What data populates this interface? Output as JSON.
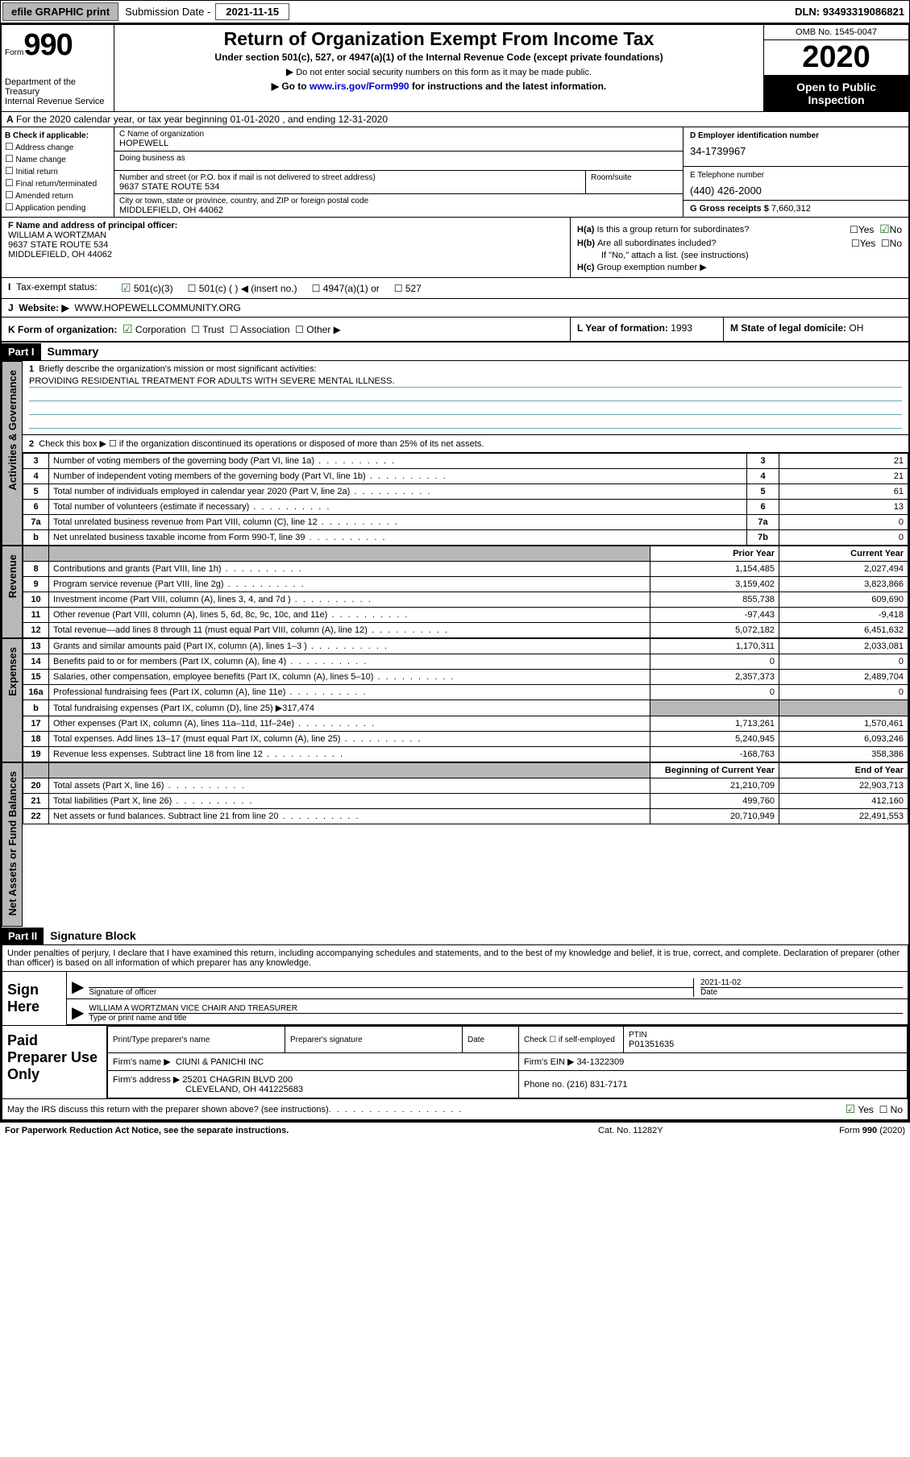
{
  "topbar": {
    "efile": "efile GRAPHIC print",
    "submission_label": "Submission Date - ",
    "submission_date": "2021-11-15",
    "dln_label": "DLN: ",
    "dln": "93493319086821"
  },
  "header": {
    "form_label": "Form",
    "form_number": "990",
    "title": "Return of Organization Exempt From Income Tax",
    "subtitle": "Under section 501(c), 527, or 4947(a)(1) of the Internal Revenue Code (except private foundations)",
    "note1": "Do not enter social security numbers on this form as it may be made public.",
    "note2_pre": "Go to ",
    "note2_link": "www.irs.gov/Form990",
    "note2_post": " for instructions and the latest information.",
    "dept": "Department of the Treasury\nInternal Revenue Service",
    "omb": "OMB No. 1545-0047",
    "year": "2020",
    "open": "Open to Public Inspection"
  },
  "row_a": "For the 2020 calendar year, or tax year beginning 01-01-2020   , and ending 12-31-2020",
  "col_b": {
    "title": "B Check if applicable:",
    "items": [
      "Address change",
      "Name change",
      "Initial return",
      "Final return/terminated",
      "Amended return",
      "Application pending"
    ]
  },
  "col_c": {
    "name_label": "C Name of organization",
    "name": "HOPEWELL",
    "dba_label": "Doing business as",
    "addr_label": "Number and street (or P.O. box if mail is not delivered to street address)",
    "addr": "9637 STATE ROUTE 534",
    "room_label": "Room/suite",
    "city_label": "City or town, state or province, country, and ZIP or foreign postal code",
    "city": "MIDDLEFIELD, OH  44062"
  },
  "col_d": {
    "ein_label": "D Employer identification number",
    "ein": "34-1739967",
    "phone_label": "E Telephone number",
    "phone": "(440) 426-2000",
    "gross_label": "G Gross receipts $ ",
    "gross": "7,660,312"
  },
  "col_f": {
    "label": "F Name and address of principal officer:",
    "name": "WILLIAM A WORTZMAN",
    "addr1": "9637 STATE ROUTE 534",
    "addr2": "MIDDLEFIELD, OH  44062"
  },
  "col_h": {
    "a": "Is this a group return for subordinates?",
    "b": "Are all subordinates included?",
    "b_note": "If \"No,\" attach a list. (see instructions)",
    "c": "Group exemption number ▶"
  },
  "tax_exempt": {
    "label": "Tax-exempt status:",
    "opt1": "501(c)(3)",
    "opt2": "501(c) (  ) ◀ (insert no.)",
    "opt3": "4947(a)(1) or",
    "opt4": "527"
  },
  "website": {
    "label": "Website: ▶",
    "value": "WWW.HOPEWELLCOMMUNITY.ORG"
  },
  "row_k": "K Form of organization:",
  "row_k_opts": [
    "Corporation",
    "Trust",
    "Association",
    "Other ▶"
  ],
  "row_l": {
    "label": "L Year of formation: ",
    "value": "1993"
  },
  "row_m": {
    "label": "M State of legal domicile: ",
    "value": "OH"
  },
  "part1": {
    "hdr": "Part I",
    "title": "Summary",
    "line1_label": "Briefly describe the organization's mission or most significant activities:",
    "line1_text": "PROVIDING RESIDENTIAL TREATMENT FOR ADULTS WITH SEVERE MENTAL ILLNESS.",
    "line2": "Check this box ▶ ☐  if the organization discontinued its operations or disposed of more than 25% of its net assets.",
    "sidelabels": {
      "gov": "Activities & Governance",
      "rev": "Revenue",
      "exp": "Expenses",
      "net": "Net Assets or Fund Balances"
    },
    "gov_rows": [
      {
        "n": "3",
        "d": "Number of voting members of the governing body (Part VI, line 1a)",
        "ln": "3",
        "v": "21"
      },
      {
        "n": "4",
        "d": "Number of independent voting members of the governing body (Part VI, line 1b)",
        "ln": "4",
        "v": "21"
      },
      {
        "n": "5",
        "d": "Total number of individuals employed in calendar year 2020 (Part V, line 2a)",
        "ln": "5",
        "v": "61"
      },
      {
        "n": "6",
        "d": "Total number of volunteers (estimate if necessary)",
        "ln": "6",
        "v": "13"
      },
      {
        "n": "7a",
        "d": "Total unrelated business revenue from Part VIII, column (C), line 12",
        "ln": "7a",
        "v": "0"
      },
      {
        "n": "b",
        "d": "Net unrelated business taxable income from Form 990-T, line 39",
        "ln": "7b",
        "v": "0"
      }
    ],
    "col_prior": "Prior Year",
    "col_current": "Current Year",
    "rev_rows": [
      {
        "n": "8",
        "d": "Contributions and grants (Part VIII, line 1h)",
        "p": "1,154,485",
        "c": "2,027,494"
      },
      {
        "n": "9",
        "d": "Program service revenue (Part VIII, line 2g)",
        "p": "3,159,402",
        "c": "3,823,866"
      },
      {
        "n": "10",
        "d": "Investment income (Part VIII, column (A), lines 3, 4, and 7d )",
        "p": "855,738",
        "c": "609,690"
      },
      {
        "n": "11",
        "d": "Other revenue (Part VIII, column (A), lines 5, 6d, 8c, 9c, 10c, and 11e)",
        "p": "-97,443",
        "c": "-9,418"
      },
      {
        "n": "12",
        "d": "Total revenue—add lines 8 through 11 (must equal Part VIII, column (A), line 12)",
        "p": "5,072,182",
        "c": "6,451,632"
      }
    ],
    "exp_rows": [
      {
        "n": "13",
        "d": "Grants and similar amounts paid (Part IX, column (A), lines 1–3 )",
        "p": "1,170,311",
        "c": "2,033,081"
      },
      {
        "n": "14",
        "d": "Benefits paid to or for members (Part IX, column (A), line 4)",
        "p": "0",
        "c": "0"
      },
      {
        "n": "15",
        "d": "Salaries, other compensation, employee benefits (Part IX, column (A), lines 5–10)",
        "p": "2,357,373",
        "c": "2,489,704"
      },
      {
        "n": "16a",
        "d": "Professional fundraising fees (Part IX, column (A), line 11e)",
        "p": "0",
        "c": "0"
      },
      {
        "n": "b",
        "d": "Total fundraising expenses (Part IX, column (D), line 25) ▶317,474",
        "p": "",
        "c": "",
        "gray": true
      },
      {
        "n": "17",
        "d": "Other expenses (Part IX, column (A), lines 11a–11d, 11f–24e)",
        "p": "1,713,261",
        "c": "1,570,461"
      },
      {
        "n": "18",
        "d": "Total expenses. Add lines 13–17 (must equal Part IX, column (A), line 25)",
        "p": "5,240,945",
        "c": "6,093,246"
      },
      {
        "n": "19",
        "d": "Revenue less expenses. Subtract line 18 from line 12",
        "p": "-168,763",
        "c": "358,386"
      }
    ],
    "col_beg": "Beginning of Current Year",
    "col_end": "End of Year",
    "net_rows": [
      {
        "n": "20",
        "d": "Total assets (Part X, line 16)",
        "p": "21,210,709",
        "c": "22,903,713"
      },
      {
        "n": "21",
        "d": "Total liabilities (Part X, line 26)",
        "p": "499,760",
        "c": "412,160"
      },
      {
        "n": "22",
        "d": "Net assets or fund balances. Subtract line 21 from line 20",
        "p": "20,710,949",
        "c": "22,491,553"
      }
    ]
  },
  "part2": {
    "hdr": "Part II",
    "title": "Signature Block",
    "declare": "Under penalties of perjury, I declare that I have examined this return, including accompanying schedules and statements, and to the best of my knowledge and belief, it is true, correct, and complete. Declaration of preparer (other than officer) is based on all information of which preparer has any knowledge.",
    "sign_here": "Sign Here",
    "sig_officer": "Signature of officer",
    "sig_date_label": "Date",
    "sig_date": "2021-11-02",
    "sig_name": "WILLIAM A WORTZMAN  VICE CHAIR AND TREASURER",
    "sig_name_label": "Type or print name and title",
    "paid": "Paid Preparer Use Only",
    "prep_name_label": "Print/Type preparer's name",
    "prep_sig_label": "Preparer's signature",
    "prep_date_label": "Date",
    "prep_check": "Check ☐ if self-employed",
    "ptin_label": "PTIN",
    "ptin": "P01351635",
    "firm_name_label": "Firm's name   ▶",
    "firm_name": "CIUNI & PANICHI INC",
    "firm_ein_label": "Firm's EIN ▶",
    "firm_ein": "34-1322309",
    "firm_addr_label": "Firm's address ▶",
    "firm_addr1": "25201 CHAGRIN BLVD 200",
    "firm_addr2": "CLEVELAND, OH  441225683",
    "firm_phone_label": "Phone no.",
    "firm_phone": "(216) 831-7171",
    "discuss": "May the IRS discuss this return with the preparer shown above? (see instructions)"
  },
  "footer": {
    "l": "For Paperwork Reduction Act Notice, see the separate instructions.",
    "c": "Cat. No. 11282Y",
    "r": "Form 990 (2020)"
  }
}
